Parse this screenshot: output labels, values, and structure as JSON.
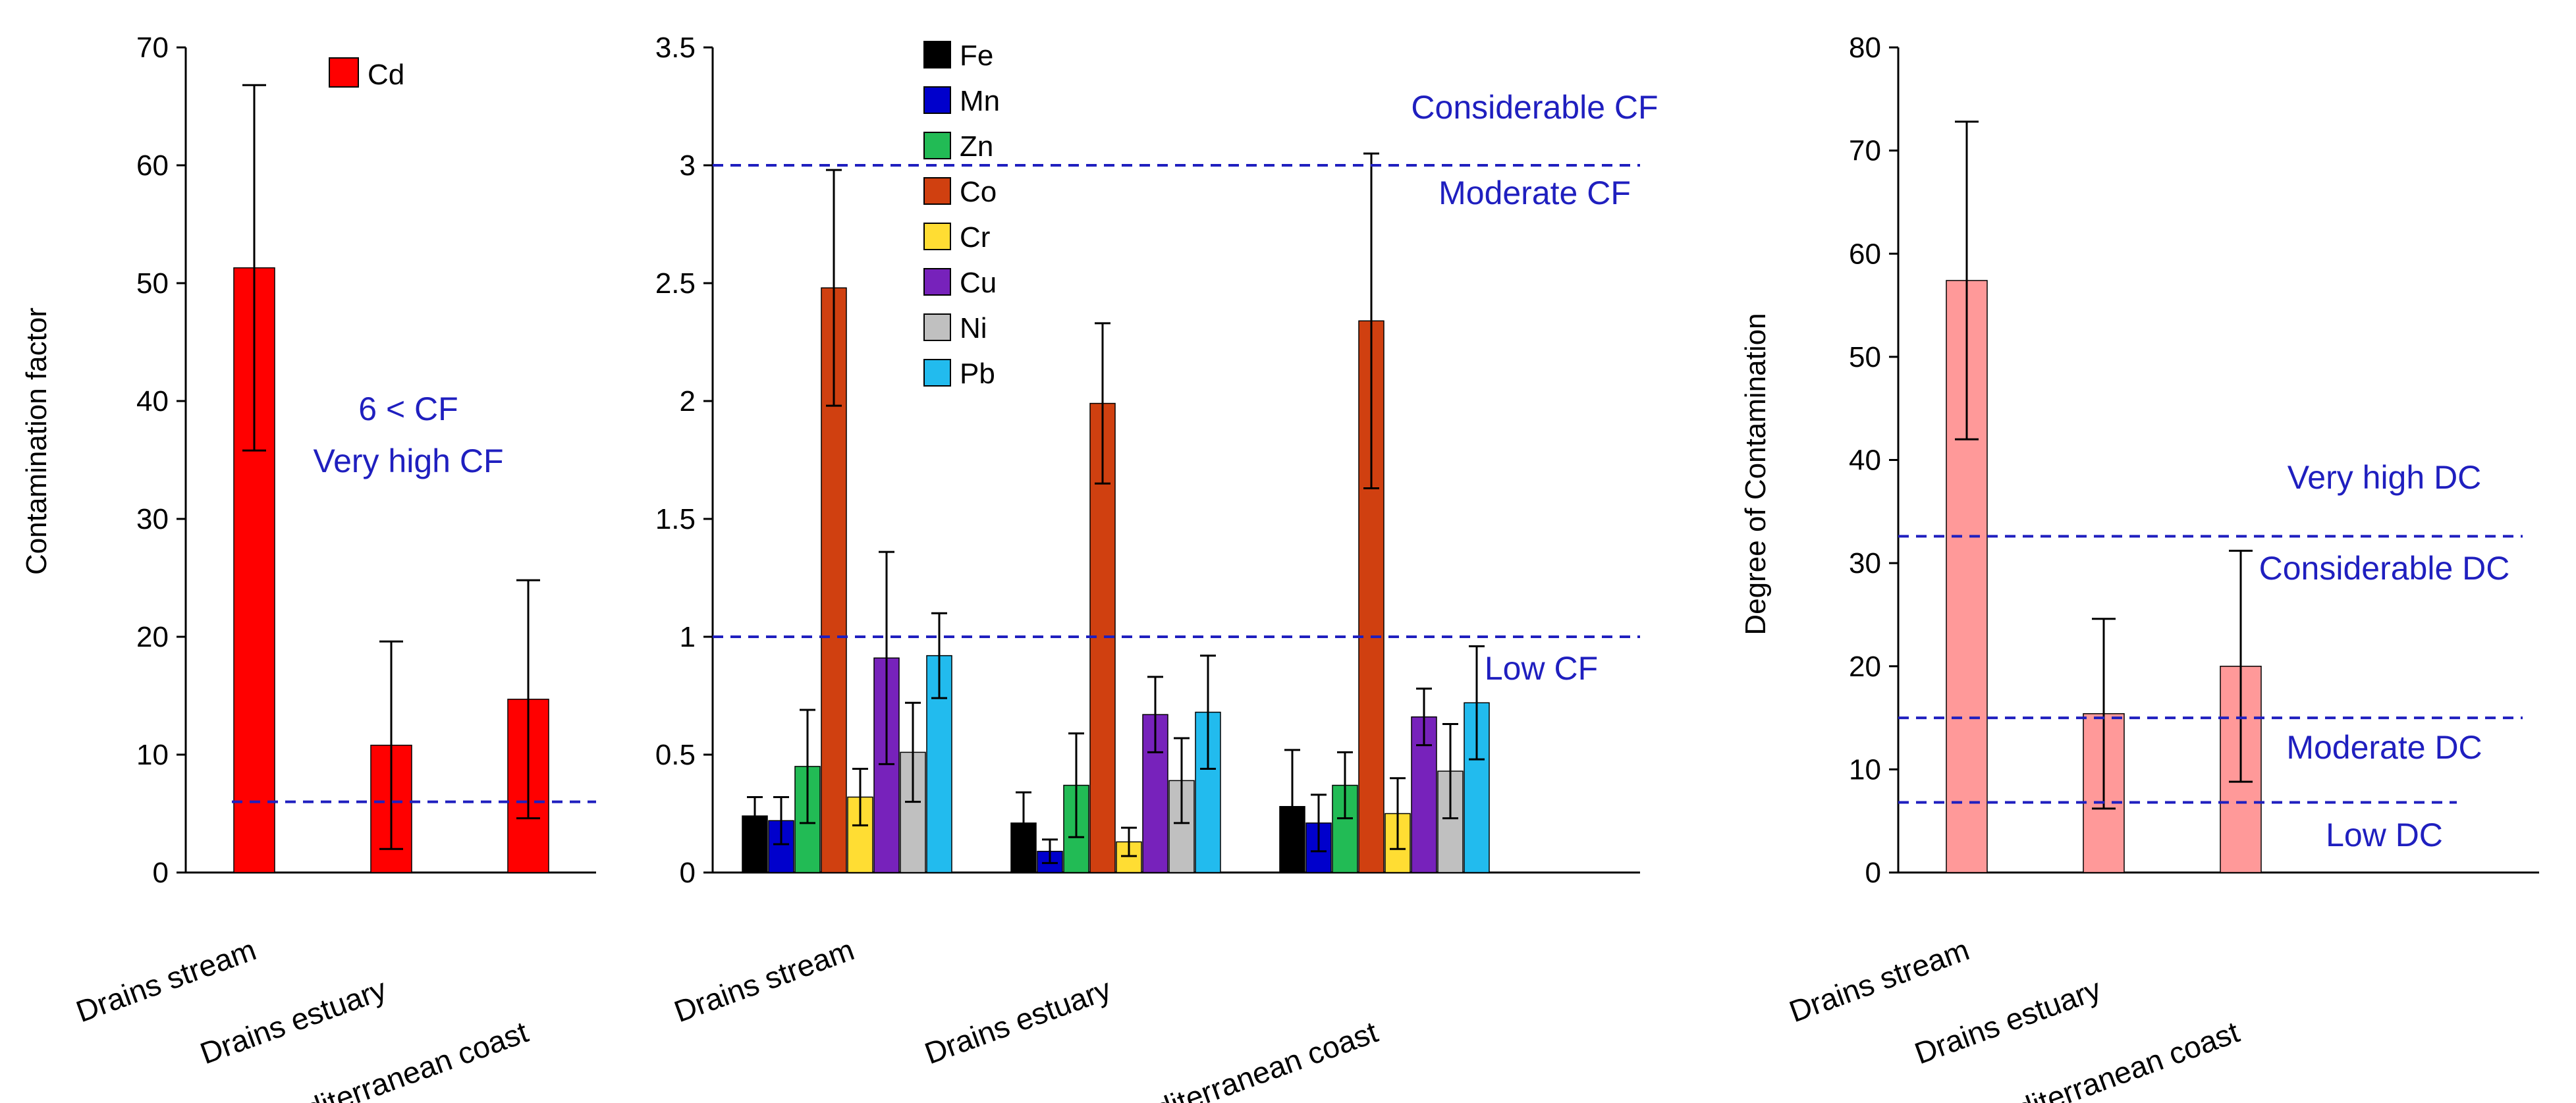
{
  "chart_data": [
    {
      "type": "bar",
      "categories": [
        "Drains stream",
        "Drains estuary",
        "Mediterranean coast"
      ],
      "ylabel": "Contamination factor",
      "ylim": [
        0,
        70
      ],
      "yticks": [
        0,
        10,
        20,
        30,
        40,
        50,
        60,
        70
      ],
      "grid": false,
      "legend": "top-center",
      "series": [
        {
          "name": "Cd",
          "color": "#ff0000",
          "values": [
            51.3,
            10.8,
            14.7
          ],
          "errors": [
            15.5,
            8.8,
            10.1
          ]
        }
      ],
      "reference_lines": [
        {
          "y": 6,
          "color": "#1f1fbf"
        }
      ],
      "annotations": [
        "6 < CF",
        "Very high CF"
      ]
    },
    {
      "type": "bar",
      "categories": [
        "Drains stream",
        "Drains estuary",
        "Mediterranean coast"
      ],
      "ylabel": "",
      "ylim": [
        0,
        3.5
      ],
      "yticks": [
        "0",
        "0.5",
        "1",
        "1.5",
        "2",
        "2.5",
        "3",
        "3.5"
      ],
      "grid": false,
      "legend": "top-left",
      "series": [
        {
          "name": "Fe",
          "color": "#000000",
          "values": [
            0.24,
            0.21,
            0.28
          ],
          "errors": [
            0.08,
            0.13,
            0.24
          ]
        },
        {
          "name": "Mn",
          "color": "#0000cc",
          "values": [
            0.22,
            0.09,
            0.21
          ],
          "errors": [
            0.1,
            0.05,
            0.12
          ]
        },
        {
          "name": "Zn",
          "color": "#22bb55",
          "values": [
            0.45,
            0.37,
            0.37
          ],
          "errors": [
            0.24,
            0.22,
            0.14
          ]
        },
        {
          "name": "Co",
          "color": "#d04010",
          "values": [
            2.48,
            1.99,
            2.34
          ],
          "errors": [
            0.5,
            0.34,
            0.71
          ]
        },
        {
          "name": "Cr",
          "color": "#ffdd33",
          "values": [
            0.32,
            0.13,
            0.25
          ],
          "errors": [
            0.12,
            0.06,
            0.15
          ]
        },
        {
          "name": "Cu",
          "color": "#7722bb",
          "values": [
            0.91,
            0.67,
            0.66
          ],
          "errors": [
            0.45,
            0.16,
            0.12
          ]
        },
        {
          "name": "Ni",
          "color": "#c0c0c0",
          "values": [
            0.51,
            0.39,
            0.43
          ],
          "errors": [
            0.21,
            0.18,
            0.2
          ]
        },
        {
          "name": "Pb",
          "color": "#22bbee",
          "values": [
            0.92,
            0.68,
            0.72
          ],
          "errors": [
            0.18,
            0.24,
            0.24
          ]
        }
      ],
      "reference_lines": [
        {
          "y": 3,
          "color": "#1f1fbf"
        },
        {
          "y": 1,
          "color": "#1f1fbf"
        }
      ],
      "annotations": [
        "Considerable  CF",
        "Moderate  CF",
        "Low CF"
      ]
    },
    {
      "type": "bar",
      "categories": [
        "Drains stream",
        "Drains estuary",
        "Mediterranean coast"
      ],
      "ylabel": "Degree of Contamination",
      "ylim": [
        0,
        80
      ],
      "yticks": [
        0,
        10,
        20,
        30,
        40,
        50,
        60,
        70,
        80
      ],
      "grid": false,
      "series": [
        {
          "name": "",
          "color": "#ff9999",
          "values": [
            57.4,
            15.4,
            20.0
          ],
          "errors": [
            15.4,
            9.2,
            11.2
          ]
        }
      ],
      "reference_lines": [
        {
          "y": 32.6,
          "color": "#1f1fbf"
        },
        {
          "y": 15,
          "color": "#1f1fbf"
        },
        {
          "y": 6.8,
          "color": "#1f1fbf"
        }
      ],
      "annotations": [
        "Very high DC",
        "Considerable DC",
        "Moderate DC",
        "Low DC"
      ]
    }
  ]
}
